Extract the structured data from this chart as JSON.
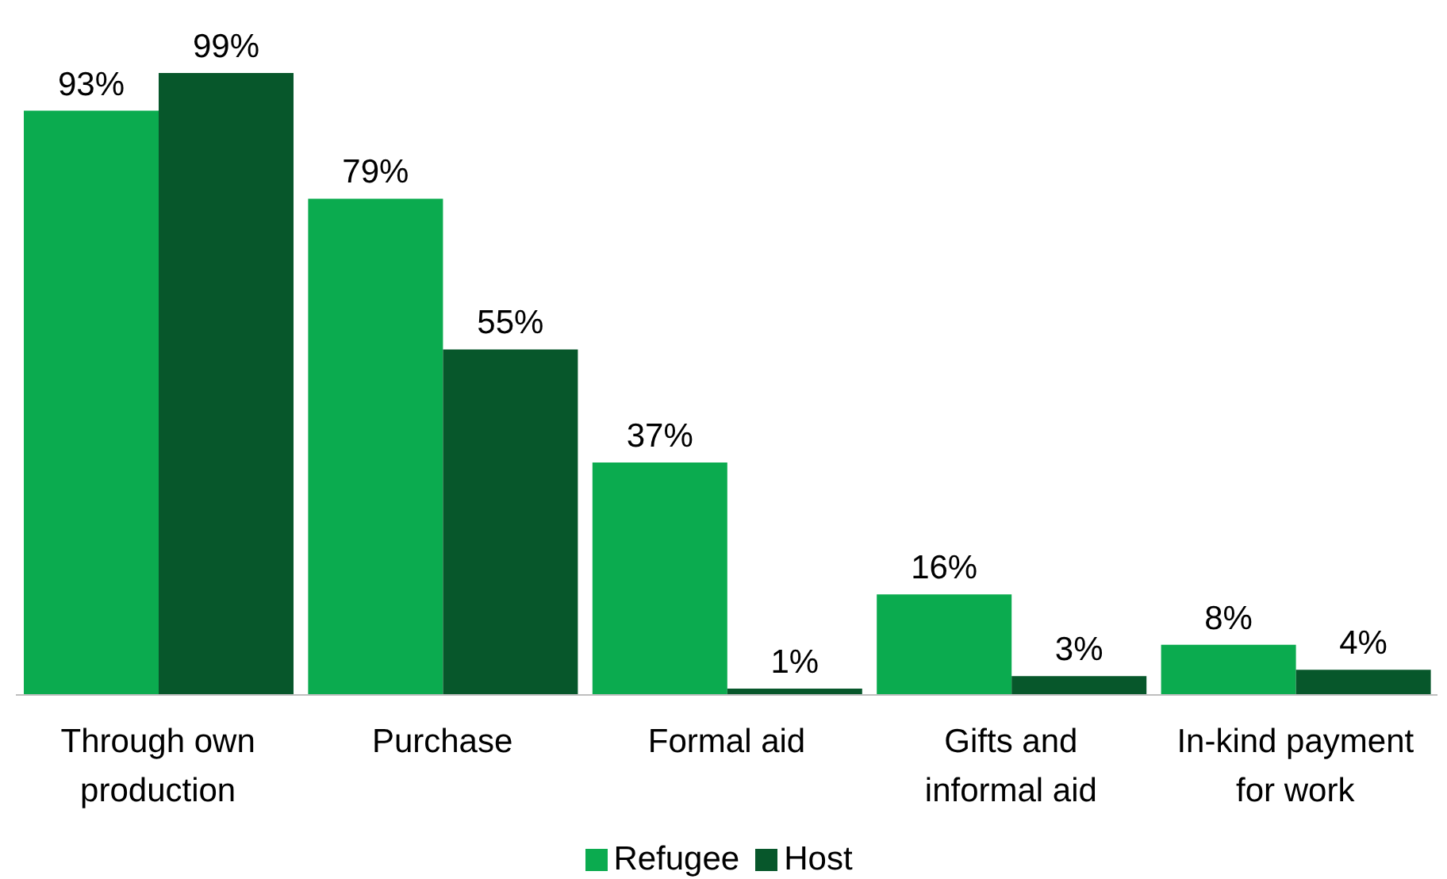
{
  "chart_data": {
    "type": "bar",
    "categories": [
      "Through own production",
      "Purchase",
      "Formal aid",
      "Gifts and informal aid",
      "In-kind payment for work"
    ],
    "series": [
      {
        "name": "Refugee",
        "color": "#0bab4f",
        "values": [
          93,
          79,
          37,
          16,
          8
        ],
        "value_labels": [
          "93%",
          "79%",
          "37%",
          "16%",
          "8%"
        ]
      },
      {
        "name": "Host",
        "color": "#07572b",
        "values": [
          99,
          55,
          1,
          3,
          4
        ],
        "value_labels": [
          "99%",
          "55%",
          "1%",
          "3%",
          "4%"
        ]
      }
    ],
    "legend": "bottom"
  }
}
